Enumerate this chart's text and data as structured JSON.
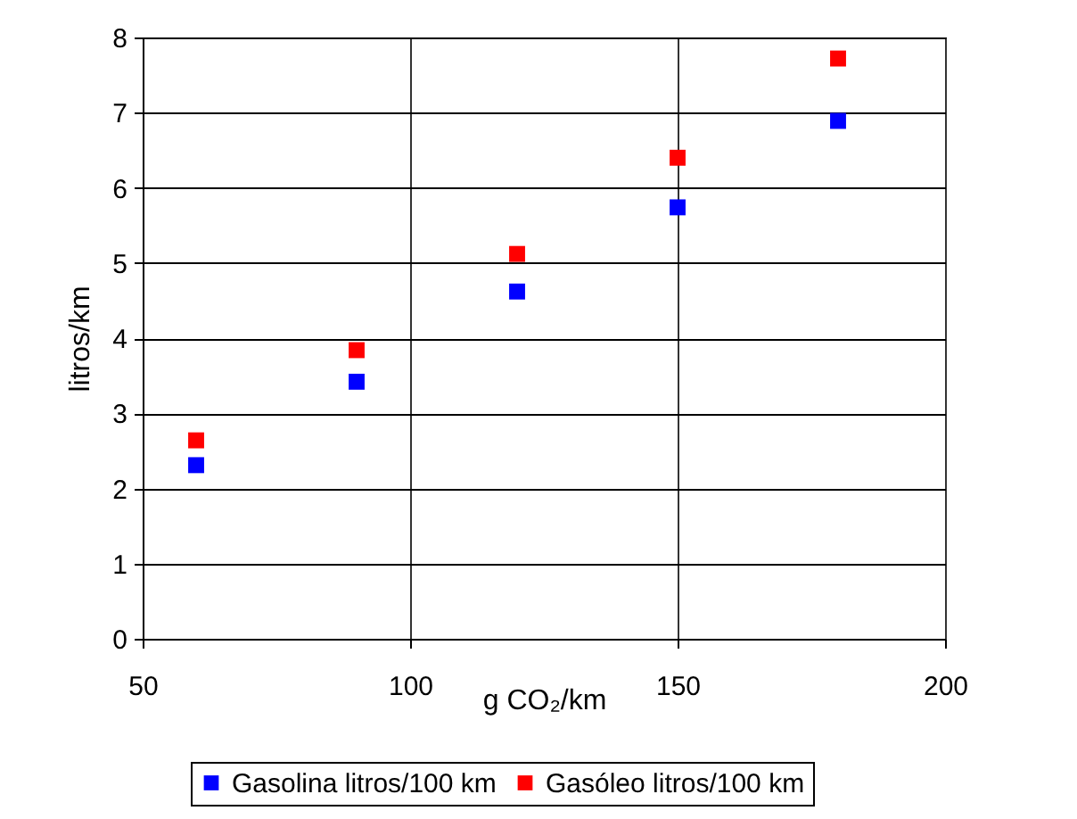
{
  "chart_data": {
    "type": "scatter",
    "xlabel": "g CO₂/km",
    "ylabel": "litros/km",
    "x": [
      60,
      90,
      120,
      150,
      180
    ],
    "series": [
      {
        "name": "Gasolina litros/100 km",
        "color": "#0000ff",
        "values": [
          2.31,
          3.42,
          4.62,
          5.74,
          6.89
        ]
      },
      {
        "name": "Gasóleo litros/100 km",
        "color": "#ff0000",
        "values": [
          2.64,
          3.84,
          5.12,
          6.4,
          7.72
        ]
      }
    ],
    "xlim": [
      50,
      200
    ],
    "xticks": [
      50,
      100,
      150,
      200
    ],
    "ylim": [
      0,
      8
    ],
    "yticks": [
      0,
      1,
      2,
      3,
      4,
      5,
      6,
      7,
      8
    ],
    "grid": true,
    "legend": "bottom",
    "marker": "square"
  }
}
